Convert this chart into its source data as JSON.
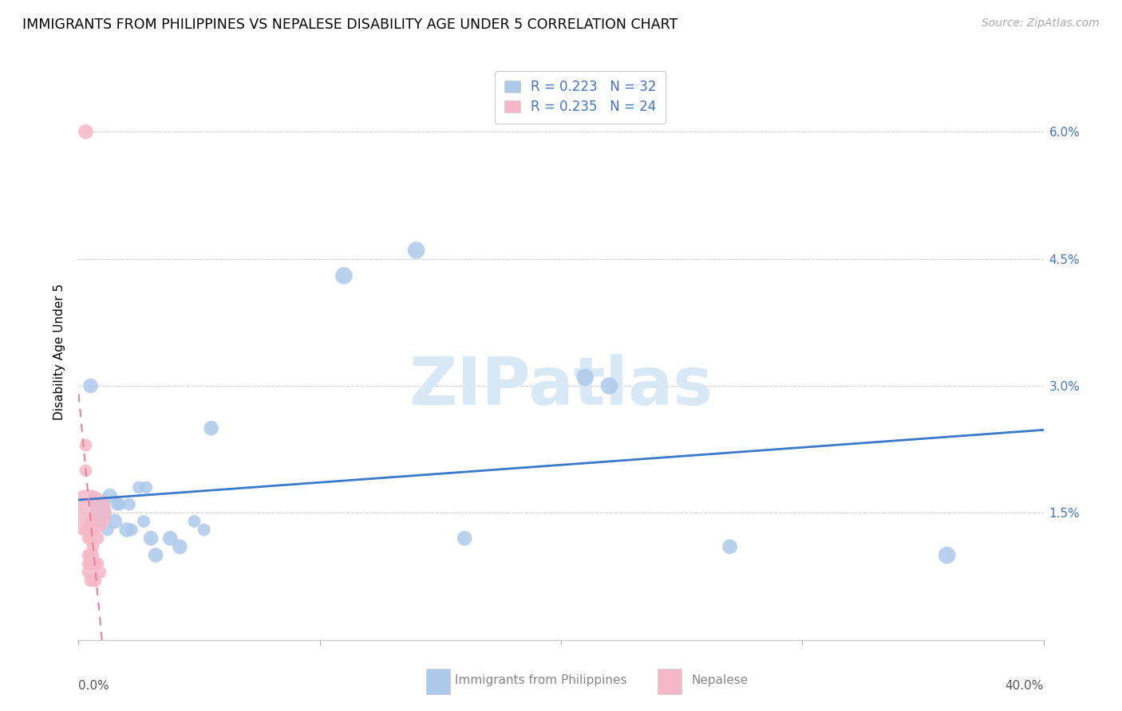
{
  "title": "IMMIGRANTS FROM PHILIPPINES VS NEPALESE DISABILITY AGE UNDER 5 CORRELATION CHART",
  "source": "Source: ZipAtlas.com",
  "ylabel": "Disability Age Under 5",
  "xlim": [
    0.0,
    0.4
  ],
  "ylim": [
    0.0,
    0.068
  ],
  "yticks": [
    0.0,
    0.015,
    0.03,
    0.045,
    0.06
  ],
  "yticklabels": [
    "",
    "1.5%",
    "3.0%",
    "4.5%",
    "6.0%"
  ],
  "legend_labels": [
    "Immigrants from Philippines",
    "Nepalese"
  ],
  "blue_R": "0.223",
  "blue_N": "32",
  "pink_R": "0.235",
  "pink_N": "24",
  "blue_color": "#adc9ea",
  "pink_color": "#f5b8c8",
  "blue_line_color": "#3a78c9",
  "pink_line_color": "#e8809a",
  "legend_text_color": "#4472c4",
  "watermark_text": "ZIPatlas",
  "watermark_color": "#d8e8f5",
  "blue_points": [
    [
      0.005,
      0.03,
      8
    ],
    [
      0.006,
      0.017,
      6
    ],
    [
      0.007,
      0.016,
      7
    ],
    [
      0.008,
      0.015,
      8
    ],
    [
      0.009,
      0.014,
      7
    ],
    [
      0.01,
      0.016,
      8
    ],
    [
      0.011,
      0.015,
      7
    ],
    [
      0.012,
      0.013,
      7
    ],
    [
      0.013,
      0.017,
      8
    ],
    [
      0.015,
      0.014,
      8
    ],
    [
      0.016,
      0.016,
      7
    ],
    [
      0.017,
      0.016,
      7
    ],
    [
      0.02,
      0.013,
      8
    ],
    [
      0.021,
      0.016,
      7
    ],
    [
      0.022,
      0.013,
      7
    ],
    [
      0.025,
      0.018,
      7
    ],
    [
      0.027,
      0.014,
      7
    ],
    [
      0.028,
      0.018,
      7
    ],
    [
      0.03,
      0.012,
      8
    ],
    [
      0.032,
      0.01,
      8
    ],
    [
      0.038,
      0.012,
      8
    ],
    [
      0.042,
      0.011,
      8
    ],
    [
      0.048,
      0.014,
      7
    ],
    [
      0.052,
      0.013,
      7
    ],
    [
      0.055,
      0.025,
      8
    ],
    [
      0.11,
      0.043,
      9
    ],
    [
      0.14,
      0.046,
      9
    ],
    [
      0.16,
      0.012,
      8
    ],
    [
      0.21,
      0.031,
      9
    ],
    [
      0.22,
      0.03,
      9
    ],
    [
      0.27,
      0.011,
      8
    ],
    [
      0.36,
      0.01,
      9
    ]
  ],
  "pink_points": [
    [
      0.003,
      0.06,
      8
    ],
    [
      0.003,
      0.023,
      7
    ],
    [
      0.003,
      0.02,
      7
    ],
    [
      0.004,
      0.015,
      20
    ],
    [
      0.004,
      0.013,
      8
    ],
    [
      0.004,
      0.012,
      7
    ],
    [
      0.004,
      0.01,
      7
    ],
    [
      0.004,
      0.009,
      7
    ],
    [
      0.004,
      0.008,
      7
    ],
    [
      0.005,
      0.014,
      7
    ],
    [
      0.005,
      0.012,
      7
    ],
    [
      0.005,
      0.01,
      7
    ],
    [
      0.005,
      0.009,
      7
    ],
    [
      0.005,
      0.007,
      7
    ],
    [
      0.006,
      0.013,
      7
    ],
    [
      0.006,
      0.011,
      7
    ],
    [
      0.006,
      0.01,
      7
    ],
    [
      0.006,
      0.009,
      7
    ],
    [
      0.006,
      0.007,
      7
    ],
    [
      0.007,
      0.009,
      7
    ],
    [
      0.007,
      0.007,
      7
    ],
    [
      0.008,
      0.012,
      7
    ],
    [
      0.008,
      0.009,
      7
    ],
    [
      0.009,
      0.008,
      7
    ]
  ]
}
